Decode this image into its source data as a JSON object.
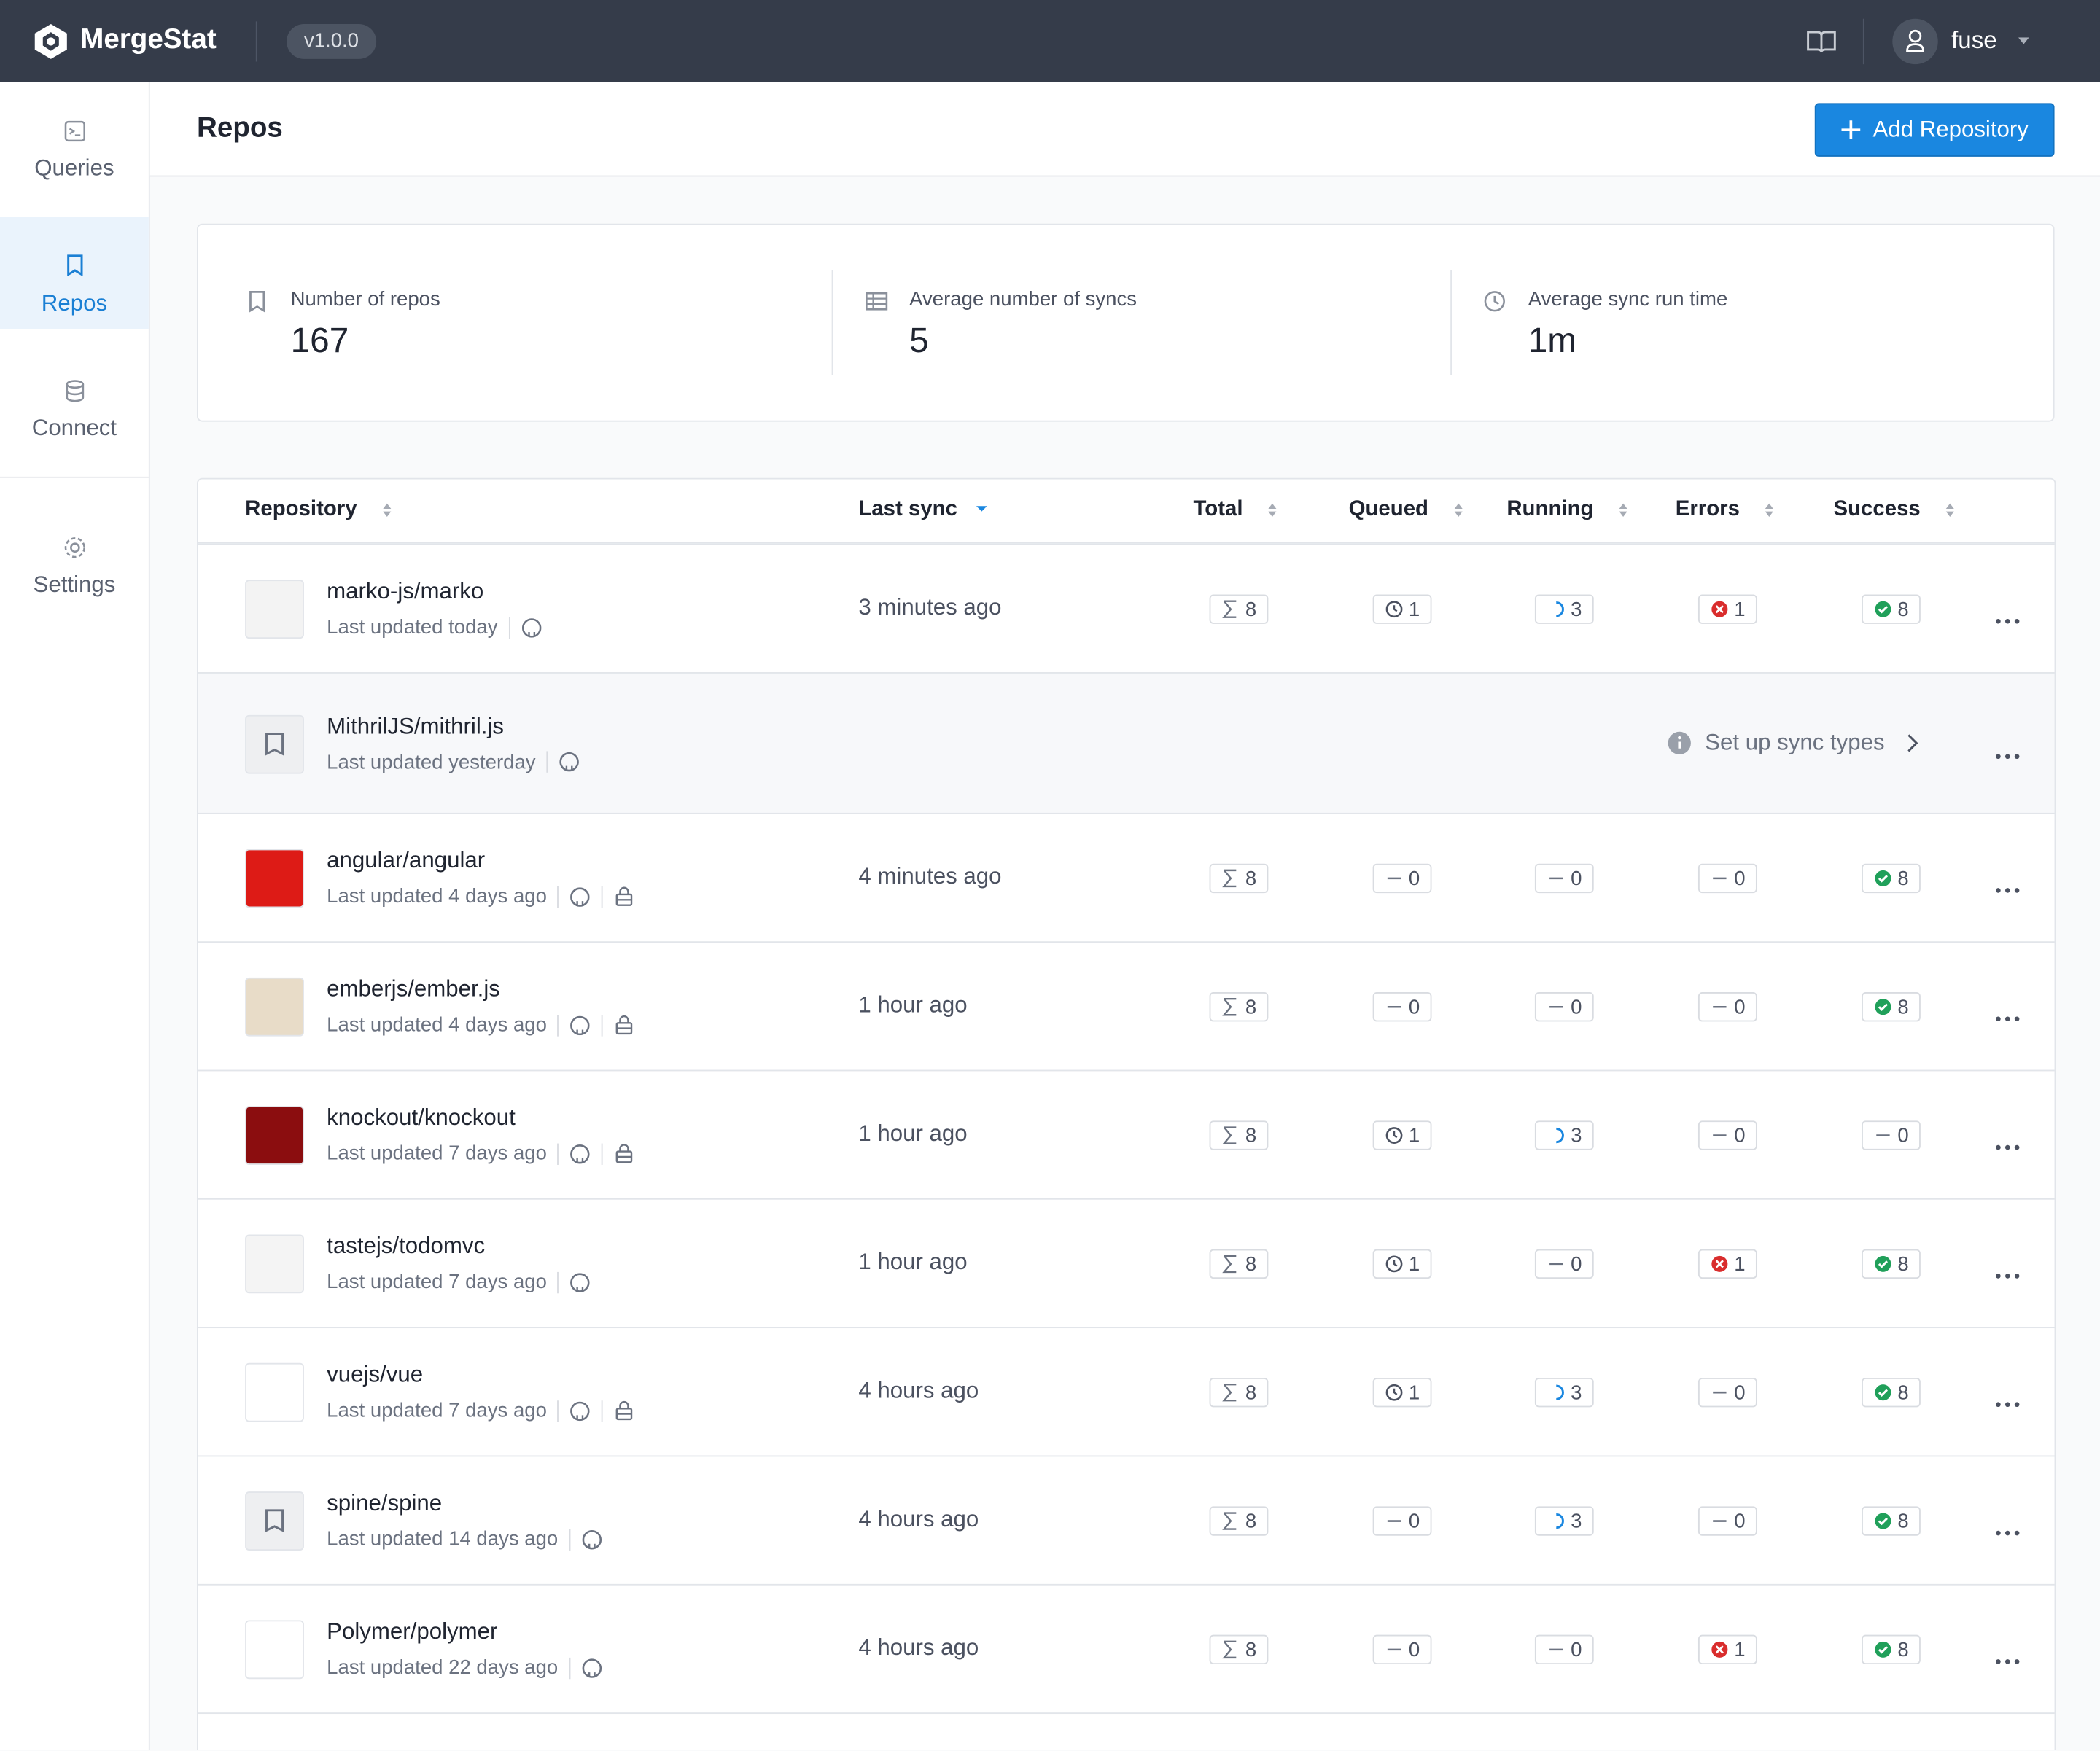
{
  "header": {
    "brand": "MergeStat",
    "version": "v1.0.0",
    "user": "fuse"
  },
  "sidebar": {
    "items": [
      "Queries",
      "Repos",
      "Connect",
      "Settings"
    ]
  },
  "page": {
    "title": "Repos",
    "add_button": "Add Repository"
  },
  "stats": [
    {
      "label": "Number of repos",
      "value": "167"
    },
    {
      "label": "Average number of syncs",
      "value": "5"
    },
    {
      "label": "Average sync run time",
      "value": "1m"
    }
  ],
  "table": {
    "columns": [
      "Repository",
      "Last sync",
      "Total",
      "Queued",
      "Running",
      "Errors",
      "Success"
    ],
    "rows": [
      {
        "name": "marko-js/marko",
        "updated": "Last updated today",
        "private": false,
        "last_sync": "3 minutes ago",
        "total": 8,
        "queued": 1,
        "running": 3,
        "errors": 1,
        "success": 8
      },
      {
        "name": "MithrilJS/mithril.js",
        "updated": "Last updated yesterday",
        "private": false,
        "setup": "Set up sync types"
      },
      {
        "name": "angular/angular",
        "updated": "Last updated 4 days ago",
        "private": true,
        "last_sync": "4 minutes ago",
        "total": 8,
        "queued": 0,
        "running": 0,
        "errors": 0,
        "success": 8
      },
      {
        "name": "emberjs/ember.js",
        "updated": "Last updated 4 days ago",
        "private": true,
        "last_sync": "1 hour ago",
        "total": 8,
        "queued": 0,
        "running": 0,
        "errors": 0,
        "success": 8
      },
      {
        "name": "knockout/knockout",
        "updated": "Last updated 7 days ago",
        "private": true,
        "last_sync": "1 hour ago",
        "total": 8,
        "queued": 1,
        "running": 3,
        "errors": 0,
        "success": 0
      },
      {
        "name": "tastejs/todomvc",
        "updated": "Last updated 7 days ago",
        "private": false,
        "last_sync": "1 hour ago",
        "total": 8,
        "queued": 1,
        "running": 0,
        "errors": 1,
        "success": 8
      },
      {
        "name": "vuejs/vue",
        "updated": "Last updated 7 days ago",
        "private": true,
        "last_sync": "4 hours ago",
        "total": 8,
        "queued": 1,
        "running": 3,
        "errors": 0,
        "success": 8
      },
      {
        "name": "spine/spine",
        "updated": "Last updated 14 days ago",
        "private": false,
        "last_sync": "4 hours ago",
        "total": 8,
        "queued": 0,
        "running": 3,
        "errors": 0,
        "success": 8
      },
      {
        "name": "Polymer/polymer",
        "updated": "Last updated 22 days ago",
        "private": false,
        "last_sync": "4 hours ago",
        "total": 8,
        "queued": 0,
        "running": 0,
        "errors": 1,
        "success": 8
      }
    ]
  }
}
